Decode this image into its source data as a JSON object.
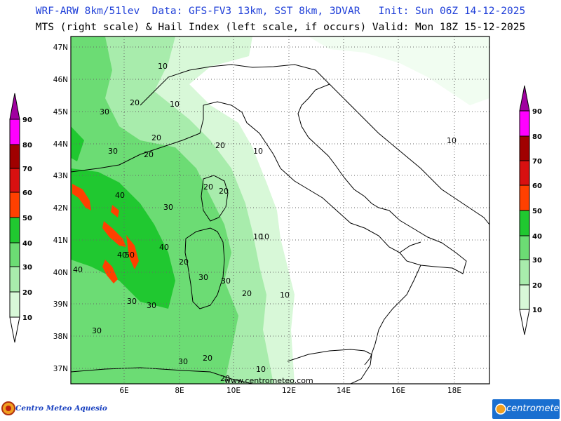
{
  "header": {
    "line1": "WRF-ARW 8km/51lev  Data: GFS-FV3 13km, SST 8km, 3DVAR   Init: Sun 06Z 14-12-2025",
    "line2": "MTS (right scale) & Hail Index (left scale, if occurs) Valid: Mon 18Z 15-12-2025"
  },
  "map": {
    "lat_labels": [
      "47N",
      "46N",
      "45N",
      "44N",
      "43N",
      "42N",
      "41N",
      "40N",
      "39N",
      "38N",
      "37N"
    ],
    "lon_labels": [
      "6E",
      "8E",
      "10E",
      "12E",
      "14E",
      "16E",
      "18E"
    ],
    "watermark": "www.centrometeo.com",
    "contour_labels": [
      "10",
      "20",
      "10",
      "30",
      "20",
      "10",
      "30",
      "20",
      "20",
      "10",
      "20",
      "20",
      "40",
      "30",
      "40",
      "40",
      "50",
      "40",
      "20",
      "30",
      "30",
      "20",
      "10",
      "30",
      "30",
      "30",
      "30",
      "20",
      "20",
      "10",
      "10",
      "10"
    ]
  },
  "legend_left": {
    "values": [
      "90",
      "80",
      "70",
      "60",
      "50",
      "40",
      "30",
      "20",
      "10"
    ]
  },
  "legend_right": {
    "values": [
      "90",
      "80",
      "70",
      "60",
      "50",
      "40",
      "30",
      "20",
      "10"
    ]
  },
  "logos": {
    "left": "Centro Meteo Aquesio",
    "right": "centrometeo"
  },
  "colors": {
    "title_blue": "#1f3fd8",
    "band_10": "#d8f8d8",
    "band_20": "#a8ecac",
    "band_30": "#6cdc74",
    "band_40": "#20c830",
    "band_50": "#ff4000",
    "band_60": "#d81010",
    "band_70": "#a00000",
    "band_80": "#ff00ff",
    "band_90": "#a000a0"
  }
}
